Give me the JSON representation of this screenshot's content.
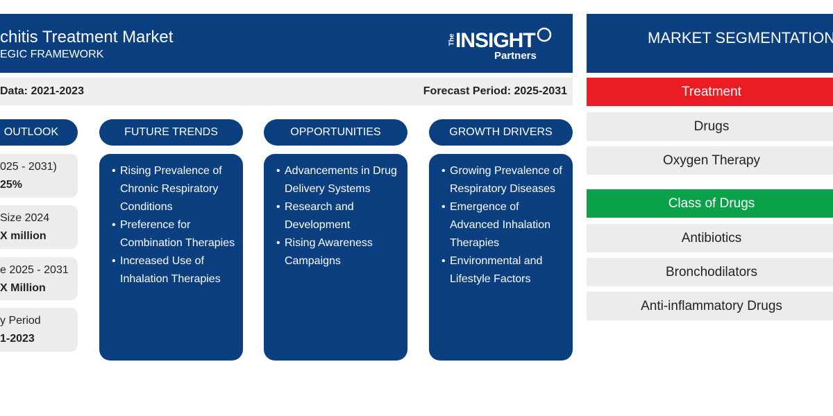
{
  "header": {
    "title": "chitis Treatment Market",
    "subtitle": "EGIC FRAMEWORK",
    "logo": {
      "top": "The",
      "main": "INSIGHT",
      "bottom": "Partners"
    }
  },
  "period_bar": {
    "historic": "Data: 2021-2023",
    "forecast": "Forecast Period: 2025-2031"
  },
  "outlook": {
    "title": "OUTLOOK",
    "items": [
      {
        "label": "025 - 2031)",
        "value": "25%"
      },
      {
        "label": "Size 2024",
        "value": "X million"
      },
      {
        "label": "e 2025 - 2031",
        "value": "X Million"
      },
      {
        "label": "y Period",
        "value": "1-2023"
      }
    ]
  },
  "columns": [
    {
      "title": "FUTURE TRENDS",
      "bullets": [
        "Rising Prevalence of Chronic Respiratory Conditions",
        "Preference for Combination Therapies",
        "Increased Use of Inhalation Therapies"
      ]
    },
    {
      "title": "OPPORTUNITIES",
      "bullets": [
        "Advancements in Drug Delivery Systems",
        "Research and Development",
        "Rising Awareness Campaigns"
      ]
    },
    {
      "title": "GROWTH DRIVERS",
      "bullets": [
        "Growing Prevalence of Respiratory Diseases",
        "Emergence of Advanced Inhalation Therapies",
        "Environmental and Lifestyle Factors"
      ]
    }
  ],
  "segmentation": {
    "title": "MARKET SEGMENTATION",
    "groups": [
      {
        "name": "Treatment",
        "items": [
          "Drugs",
          "Oxygen Therapy"
        ]
      },
      {
        "name": "Class of Drugs",
        "items": [
          "Antibiotics",
          "Bronchodilators",
          "Anti-inflammatory Drugs"
        ]
      }
    ]
  }
}
